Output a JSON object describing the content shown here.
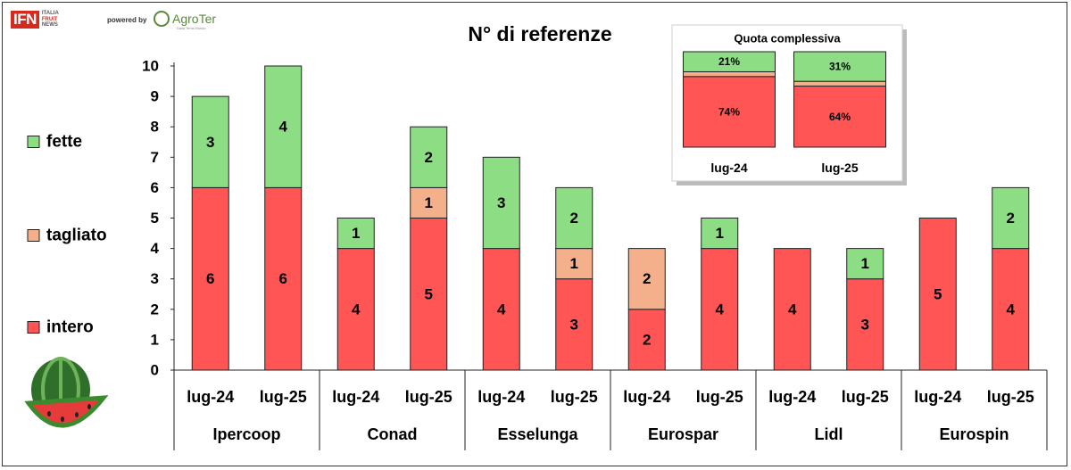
{
  "header": {
    "ifn_logo": "IFN",
    "ifn_sub": [
      "ITALIA",
      "FRUIT",
      "NEWS"
    ],
    "powered_by": "powered by",
    "agroter_logo": "AgroTer",
    "agroter_tagline": "Dalla Terra Mondo"
  },
  "colors": {
    "intero": "#ff5555",
    "tagliato": "#f4b08a",
    "fette": "#8ddd85"
  },
  "chart_data": [
    {
      "type": "bar",
      "stacked": true,
      "title": "N° di referenze",
      "xlabel": "",
      "ylabel": "",
      "ylim": [
        0,
        10
      ],
      "yticks": [
        0,
        1,
        2,
        3,
        4,
        5,
        6,
        7,
        8,
        9,
        10
      ],
      "grid": false,
      "legend_position": "left",
      "groups": [
        "Ipercoop",
        "Conad",
        "Esselunga",
        "Eurospar",
        "Lidl",
        "Eurospin"
      ],
      "categories": [
        "lug-24",
        "lug-25",
        "lug-24",
        "lug-25",
        "lug-24",
        "lug-25",
        "lug-24",
        "lug-25",
        "lug-24",
        "lug-25",
        "lug-24",
        "lug-25"
      ],
      "series": [
        {
          "name": "intero",
          "values": [
            6,
            6,
            4,
            5,
            4,
            3,
            2,
            4,
            4,
            3,
            5,
            4
          ]
        },
        {
          "name": "tagliato",
          "values": [
            0,
            0,
            0,
            1,
            0,
            1,
            2,
            0,
            0,
            0,
            0,
            0
          ]
        },
        {
          "name": "fette",
          "values": [
            3,
            4,
            1,
            2,
            3,
            2,
            0,
            1,
            0,
            1,
            0,
            2
          ]
        }
      ]
    },
    {
      "type": "bar",
      "stacked": true,
      "percent": true,
      "title": "Quota complessiva",
      "categories": [
        "lug-24",
        "lug-25"
      ],
      "series": [
        {
          "name": "intero",
          "values": [
            74,
            64
          ],
          "labels": [
            "74%",
            "64%"
          ]
        },
        {
          "name": "tagliato",
          "values": [
            5,
            5
          ],
          "labels": [
            "",
            ""
          ]
        },
        {
          "name": "fette",
          "values": [
            21,
            31
          ],
          "labels": [
            "21%",
            "31%"
          ]
        }
      ]
    }
  ]
}
